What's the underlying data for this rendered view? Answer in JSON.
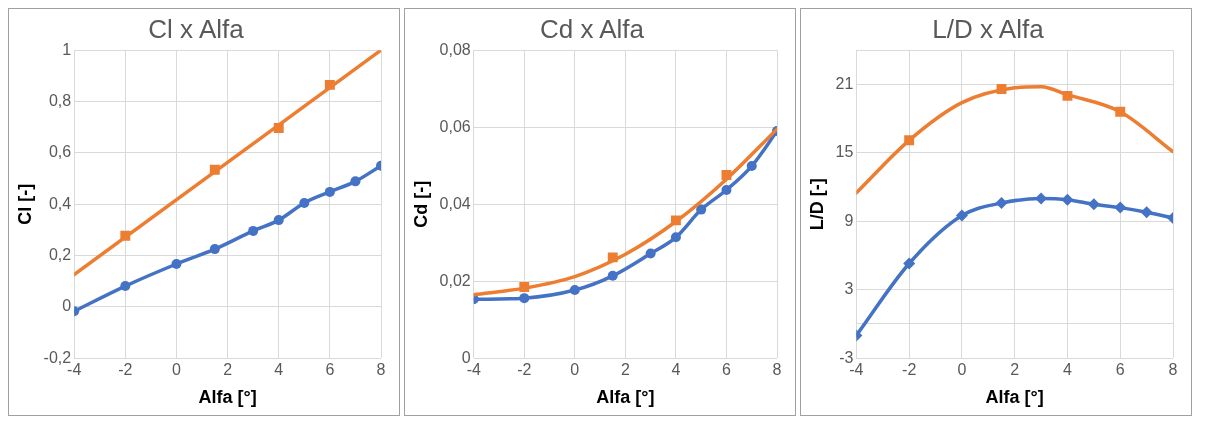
{
  "chart_data": [
    {
      "type": "line",
      "title": "Cl x Alfa",
      "xlabel": "Alfa [°]",
      "ylabel": "Cl [-]",
      "xlim": [
        -4,
        8
      ],
      "xticks": [
        -4,
        -2,
        0,
        2,
        4,
        6,
        8
      ],
      "ylim": [
        -0.2,
        1
      ],
      "yticks": [
        {
          "value": -0.2,
          "label": "-0,2"
        },
        0,
        {
          "value": 0.2,
          "label": "0,2"
        },
        {
          "value": 0.4,
          "label": "0,4"
        },
        {
          "value": 0.6,
          "label": "0,6"
        },
        {
          "value": 0.8,
          "label": "0,8"
        },
        1
      ],
      "grid": true,
      "legend": false,
      "series": [
        {
          "color": "#4472c4",
          "marker": "circle",
          "x": [
            -4,
            -2,
            0,
            1.5,
            3,
            4,
            5,
            6,
            7,
            8
          ],
          "values": [
            -0.017,
            0.081,
            0.167,
            0.225,
            0.296,
            0.338,
            0.405,
            0.448,
            0.489,
            0.55
          ]
        },
        {
          "color": "#ed7d31",
          "marker": "none",
          "x": [
            -4,
            8
          ],
          "values": [
            0.126,
            1.0
          ]
        },
        {
          "type": "scatter",
          "color": "#ed7d31",
          "marker": "square",
          "x": [
            -2,
            1.5,
            4,
            6
          ],
          "values": [
            0.277,
            0.534,
            0.697,
            0.865
          ]
        }
      ]
    },
    {
      "type": "line",
      "title": "Cd x Alfa",
      "xlabel": "Alfa [°]",
      "ylabel": "Cd [-]",
      "xlim": [
        -4,
        8
      ],
      "xticks": [
        -4,
        -2,
        0,
        2,
        4,
        6,
        8
      ],
      "ylim": [
        0,
        0.08
      ],
      "yticks": [
        0,
        {
          "value": 0.02,
          "label": "0,02"
        },
        {
          "value": 0.04,
          "label": "0,04"
        },
        {
          "value": 0.06,
          "label": "0,06"
        },
        {
          "value": 0.08,
          "label": "0,08"
        }
      ],
      "grid": true,
      "legend": false,
      "series": [
        {
          "color": "#ed7d31",
          "marker": "none",
          "x": [
            -4,
            -2,
            0,
            2,
            4,
            6,
            8
          ],
          "values": [
            0.0165,
            0.0182,
            0.0212,
            0.027,
            0.0355,
            0.0465,
            0.0595
          ]
        },
        {
          "type": "scatter",
          "color": "#ed7d31",
          "marker": "square",
          "x": [
            -2,
            1.5,
            4,
            6
          ],
          "values": [
            0.0185,
            0.0262,
            0.0358,
            0.0476
          ]
        },
        {
          "color": "#4472c4",
          "marker": "circle",
          "x": [
            -4,
            -2,
            0,
            1.5,
            3,
            4,
            5,
            6,
            7,
            8
          ],
          "values": [
            0.0153,
            0.0156,
            0.0177,
            0.0214,
            0.0272,
            0.0314,
            0.0386,
            0.0437,
            0.0499,
            0.059
          ]
        }
      ]
    },
    {
      "type": "line",
      "title": "L/D x Alfa",
      "xlabel": "Alfa [°]",
      "ylabel": "L/D [-]",
      "xlim": [
        -4,
        8
      ],
      "xticks": [
        -4,
        -2,
        0,
        2,
        4,
        6,
        8
      ],
      "ylim": [
        -3,
        24
      ],
      "yticks": [
        -3,
        {
          "value": 0,
          "label": null
        },
        3,
        9,
        15,
        21,
        {
          "value": 24,
          "label": null
        }
      ],
      "grid": true,
      "legend": false,
      "series": [
        {
          "color": "#ed7d31",
          "marker": "none",
          "x": [
            -4,
            -2,
            0,
            2,
            3,
            4,
            6,
            8
          ],
          "values": [
            11.5,
            16.1,
            19.4,
            20.7,
            20.8,
            20.1,
            18.6,
            15.1
          ]
        },
        {
          "type": "scatter",
          "color": "#ed7d31",
          "marker": "square",
          "x": [
            -2,
            1.5,
            4,
            6
          ],
          "values": [
            16.1,
            20.6,
            20.0,
            18.6
          ]
        },
        {
          "color": "#4472c4",
          "marker": "diamond",
          "x": [
            -4,
            -2,
            0,
            1.5,
            3,
            4,
            5,
            6,
            7,
            8
          ],
          "values": [
            -1.0,
            5.3,
            9.5,
            10.6,
            11.0,
            10.9,
            10.5,
            10.2,
            9.8,
            9.3
          ]
        }
      ]
    }
  ]
}
